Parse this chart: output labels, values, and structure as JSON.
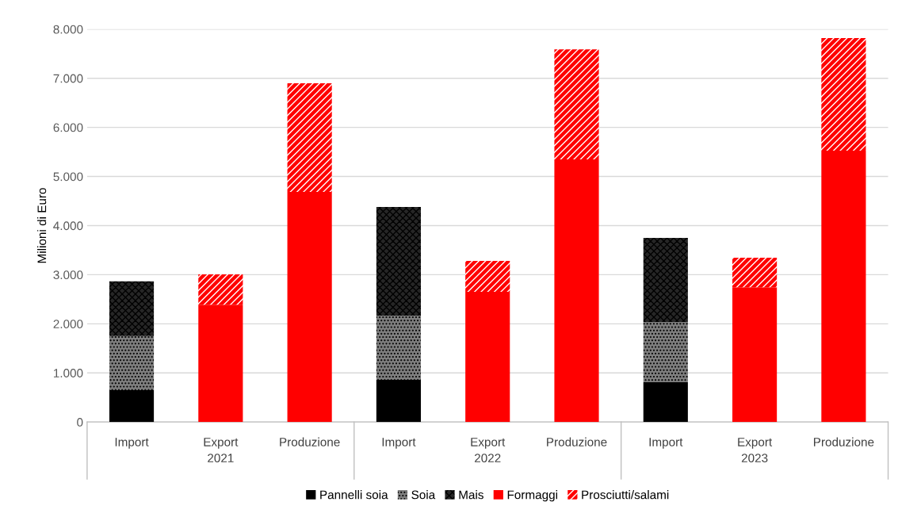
{
  "chart_data": {
    "type": "bar",
    "stacked": true,
    "ylabel": "Milioni di Euro",
    "categories": [
      "Import",
      "Export",
      "Produzione",
      "Import",
      "Export",
      "Produzione",
      "Import",
      "Export",
      "Produzione"
    ],
    "annotations": [
      "2021",
      "2022",
      "2023"
    ],
    "series": [
      {
        "name": "Pannelli soia",
        "color": "#000000",
        "values": [
          650,
          null,
          null,
          860,
          null,
          null,
          810,
          null,
          null
        ]
      },
      {
        "name": "Soia",
        "color": "#7f7f7f",
        "values": [
          1100,
          null,
          null,
          1305,
          null,
          null,
          1225,
          null,
          null
        ]
      },
      {
        "name": "Mais",
        "color": "#262626",
        "values": [
          1115,
          null,
          null,
          2215,
          null,
          null,
          1715,
          null,
          null
        ]
      },
      {
        "name": "Formaggi",
        "color": "#ff0000",
        "values": [
          null,
          2390,
          4685,
          null,
          2650,
          5350,
          null,
          2745,
          5525
        ]
      },
      {
        "name": "Prosciutti/salami",
        "color": "#ff0000",
        "values": [
          null,
          615,
          2215,
          null,
          630,
          2240,
          null,
          600,
          2295
        ]
      }
    ],
    "ylim": [
      0,
      8000
    ],
    "yticks": [
      0,
      {
        "value": 1000,
        "label": "1.000"
      },
      {
        "value": 2000,
        "label": "2.000"
      },
      {
        "value": 3000,
        "label": "3.000"
      },
      {
        "value": 4000,
        "label": "4.000"
      },
      {
        "value": 5000,
        "label": "5.000"
      },
      {
        "value": 6000,
        "label": "6.000"
      },
      {
        "value": 7000,
        "label": "7.000"
      },
      {
        "value": 8000,
        "label": "8.000"
      }
    ],
    "grid": "y",
    "legend": "bottom"
  }
}
